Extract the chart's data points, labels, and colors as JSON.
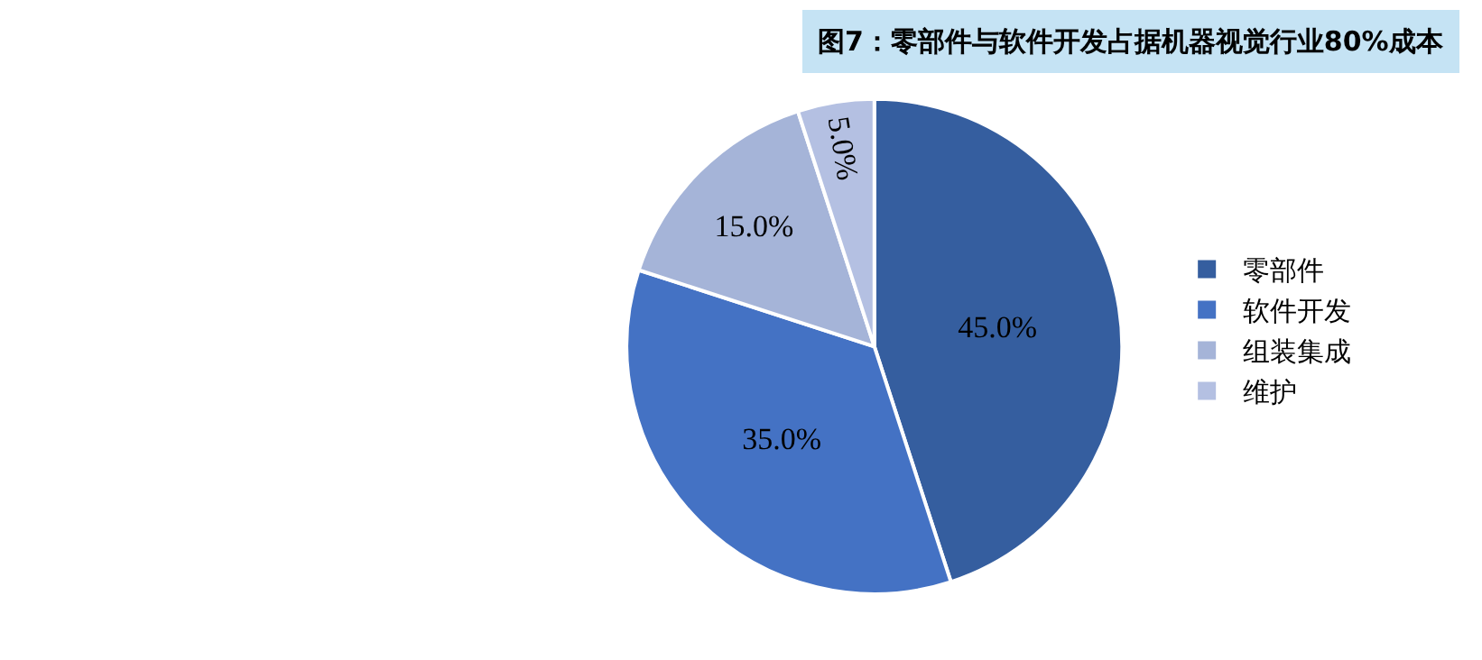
{
  "chart_data": {
    "type": "pie",
    "title": "图7：零部件与软件开发占据机器视觉行业80%成本",
    "categories": [
      "零部件",
      "软件开发",
      "组装集成",
      "维护"
    ],
    "values": [
      45,
      35,
      15,
      5
    ],
    "value_labels": [
      "45.0%",
      "35.0%",
      "15.0%",
      "5.0%"
    ],
    "colors": [
      "#355e9f",
      "#4472c4",
      "#a5b4d8",
      "#b4c0e2"
    ],
    "legend": "right"
  }
}
